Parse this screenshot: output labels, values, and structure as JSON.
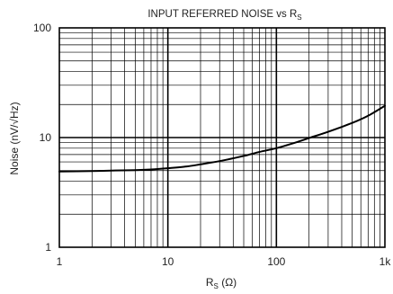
{
  "chart_data": {
    "type": "line",
    "title": "INPUT REFERRED NOISE vs R",
    "title_subscript": "S",
    "xlabel": "R",
    "xlabel_subscript": "S",
    "xlabel_unit": " (Ω)",
    "ylabel": "Noise (nV/√Hz)",
    "x_scale": "log",
    "y_scale": "log",
    "xlim": [
      1,
      1000
    ],
    "ylim": [
      1,
      100
    ],
    "x_ticks": [
      {
        "value": 1,
        "label": "1"
      },
      {
        "value": 10,
        "label": "10"
      },
      {
        "value": 100,
        "label": "100"
      },
      {
        "value": 1000,
        "label": "1k"
      }
    ],
    "y_ticks": [
      {
        "value": 1,
        "label": "1"
      },
      {
        "value": 10,
        "label": "10"
      },
      {
        "value": 100,
        "label": "100"
      }
    ],
    "grid": true,
    "series": [
      {
        "color": "#000000",
        "x": [
          1,
          2,
          3,
          5,
          7,
          10,
          15,
          20,
          30,
          50,
          70,
          100,
          150,
          200,
          300,
          500,
          700,
          1000
        ],
        "y": [
          4.9,
          4.95,
          5.0,
          5.05,
          5.12,
          5.25,
          5.45,
          5.7,
          6.1,
          6.8,
          7.4,
          8.0,
          9.0,
          9.9,
          11.3,
          13.6,
          15.8,
          19.5
        ]
      }
    ]
  }
}
